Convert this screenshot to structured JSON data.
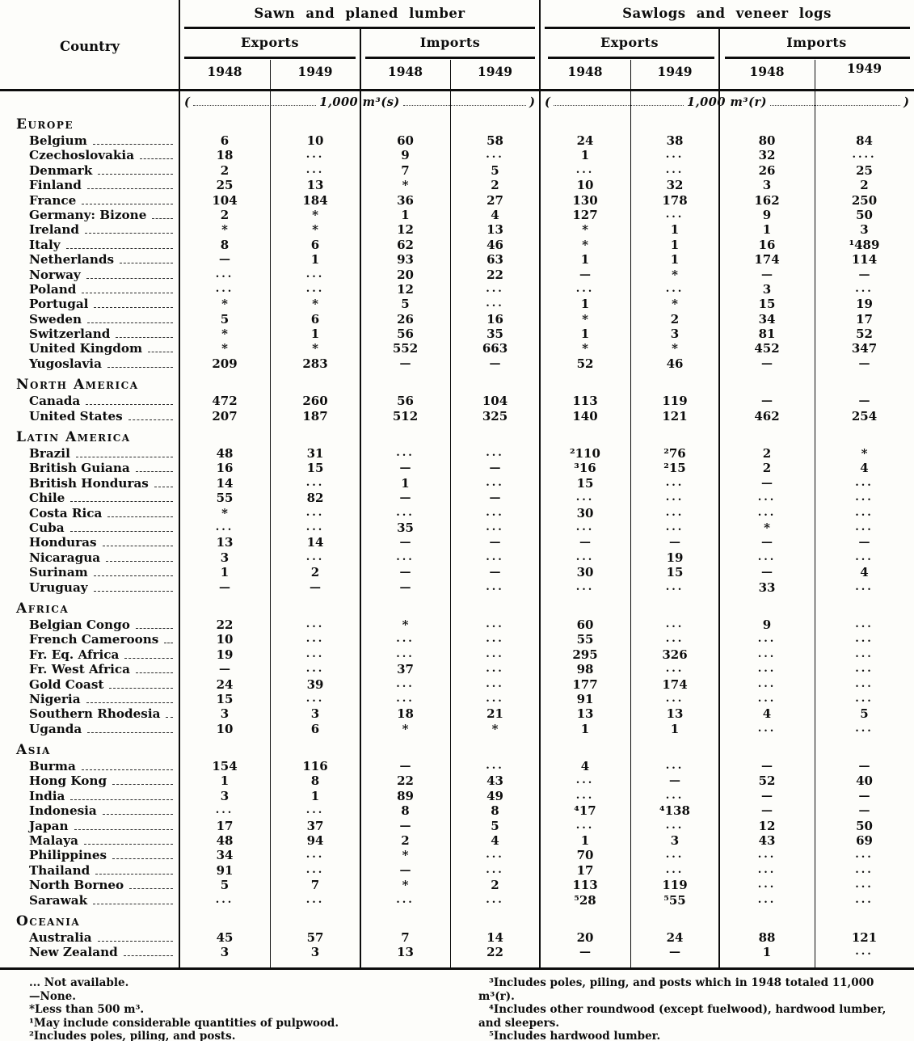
{
  "header": {
    "country_label": "Country",
    "groups": [
      {
        "title": "Sawn and planed lumber",
        "subgroups": [
          "Exports",
          "Imports"
        ],
        "years": [
          "1948",
          "1949",
          "1948",
          "1949"
        ],
        "unit": "1,000 m³(s)"
      },
      {
        "title": "Sawlogs and veneer logs",
        "subgroups": [
          "Exports",
          "Imports"
        ],
        "years": [
          "1948",
          "1949",
          "1948",
          "1949"
        ],
        "unit": "1,000 m³(r)"
      }
    ]
  },
  "sections": [
    {
      "name": "Europe",
      "rows": [
        {
          "country": "Belgium",
          "values": [
            "6",
            "10",
            "60",
            "58",
            "24",
            "38",
            "80",
            "84"
          ]
        },
        {
          "country": "Czechoslovakia",
          "values": [
            "18",
            "...",
            "9",
            "...",
            "1",
            "...",
            "32",
            "...."
          ]
        },
        {
          "country": "Denmark",
          "values": [
            "2",
            "...",
            "7",
            "5",
            "...",
            "...",
            "26",
            "25"
          ]
        },
        {
          "country": "Finland",
          "values": [
            "25",
            "13",
            "*",
            "2",
            "10",
            "32",
            "3",
            "2"
          ]
        },
        {
          "country": "France",
          "values": [
            "104",
            "184",
            "36",
            "27",
            "130",
            "178",
            "162",
            "250"
          ]
        },
        {
          "country": "Germany: Bizone",
          "values": [
            "2",
            "*",
            "1",
            "4",
            "127",
            "...",
            "9",
            "50"
          ]
        },
        {
          "country": "Ireland",
          "values": [
            "*",
            "*",
            "12",
            "13",
            "*",
            "1",
            "1",
            "3"
          ]
        },
        {
          "country": "Italy",
          "values": [
            "8",
            "6",
            "62",
            "46",
            "*",
            "1",
            "16",
            "¹489"
          ]
        },
        {
          "country": "Netherlands",
          "values": [
            "—",
            "1",
            "93",
            "63",
            "1",
            "1",
            "174",
            "114"
          ]
        },
        {
          "country": "Norway",
          "values": [
            "...",
            "...",
            "20",
            "22",
            "—",
            "*",
            "—",
            "—"
          ]
        },
        {
          "country": "Poland",
          "values": [
            "...",
            "...",
            "12",
            "...",
            "...",
            "...",
            "3",
            "..."
          ]
        },
        {
          "country": "Portugal",
          "values": [
            "*",
            "*",
            "5",
            "...",
            "1",
            "*",
            "15",
            "19"
          ]
        },
        {
          "country": "Sweden",
          "values": [
            "5",
            "6",
            "26",
            "16",
            "*",
            "2",
            "34",
            "17"
          ]
        },
        {
          "country": "Switzerland",
          "values": [
            "*",
            "1",
            "56",
            "35",
            "1",
            "3",
            "81",
            "52"
          ]
        },
        {
          "country": "United Kingdom",
          "values": [
            "*",
            "*",
            "552",
            "663",
            "*",
            "*",
            "452",
            "347"
          ]
        },
        {
          "country": "Yugoslavia",
          "values": [
            "209",
            "283",
            "—",
            "—",
            "52",
            "46",
            "—",
            "—"
          ]
        }
      ]
    },
    {
      "name": "North America",
      "rows": [
        {
          "country": "Canada",
          "values": [
            "472",
            "260",
            "56",
            "104",
            "113",
            "119",
            "—",
            "—"
          ]
        },
        {
          "country": "United States",
          "values": [
            "207",
            "187",
            "512",
            "325",
            "140",
            "121",
            "462",
            "254"
          ]
        }
      ]
    },
    {
      "name": "Latin America",
      "rows": [
        {
          "country": "Brazil",
          "values": [
            "48",
            "31",
            "...",
            "...",
            "²110",
            "²76",
            "2",
            "*"
          ]
        },
        {
          "country": "British Guiana",
          "values": [
            "16",
            "15",
            "—",
            "—",
            "³16",
            "²15",
            "2",
            "4"
          ]
        },
        {
          "country": "British Honduras",
          "values": [
            "14",
            "...",
            "1",
            "...",
            "15",
            "...",
            "—",
            "..."
          ]
        },
        {
          "country": "Chile",
          "values": [
            "55",
            "82",
            "—",
            "—",
            "...",
            "...",
            "...",
            "..."
          ]
        },
        {
          "country": "Costa Rica",
          "values": [
            "*",
            "...",
            "...",
            "...",
            "30",
            "...",
            "...",
            "..."
          ]
        },
        {
          "country": "Cuba",
          "values": [
            "...",
            "...",
            "35",
            "...",
            "...",
            "...",
            "*",
            "..."
          ]
        },
        {
          "country": "Honduras",
          "values": [
            "13",
            "14",
            "—",
            "—",
            "—",
            "—",
            "—",
            "—"
          ]
        },
        {
          "country": "Nicaragua",
          "values": [
            "3",
            "...",
            "...",
            "...",
            "...",
            "19",
            "...",
            "..."
          ]
        },
        {
          "country": "Surinam",
          "values": [
            "1",
            "2",
            "—",
            "—",
            "30",
            "15",
            "—",
            "4"
          ]
        },
        {
          "country": "Uruguay",
          "values": [
            "—",
            "—",
            "—",
            "...",
            "...",
            "...",
            "33",
            "..."
          ]
        }
      ]
    },
    {
      "name": "Africa",
      "rows": [
        {
          "country": "Belgian Congo",
          "values": [
            "22",
            "...",
            "*",
            "...",
            "60",
            "...",
            "9",
            "..."
          ]
        },
        {
          "country": "French Cameroons",
          "values": [
            "10",
            "...",
            "...",
            "...",
            "55",
            "...",
            "...",
            "..."
          ]
        },
        {
          "country": "Fr. Eq. Africa",
          "values": [
            "19",
            "...",
            "...",
            "...",
            "295",
            "326",
            "...",
            "..."
          ]
        },
        {
          "country": "Fr. West Africa",
          "values": [
            "—",
            "...",
            "37",
            "...",
            "98",
            "...",
            "...",
            "..."
          ]
        },
        {
          "country": "Gold Coast",
          "values": [
            "24",
            "39",
            "...",
            "...",
            "177",
            "174",
            "...",
            "..."
          ]
        },
        {
          "country": "Nigeria",
          "values": [
            "15",
            "...",
            "...",
            "...",
            "91",
            "...",
            "...",
            "..."
          ]
        },
        {
          "country": "Southern Rhodesia",
          "values": [
            "3",
            "3",
            "18",
            "21",
            "13",
            "13",
            "4",
            "5"
          ]
        },
        {
          "country": "Uganda",
          "values": [
            "10",
            "6",
            "*",
            "*",
            "1",
            "1",
            "...",
            "..."
          ]
        }
      ]
    },
    {
      "name": "Asia",
      "rows": [
        {
          "country": "Burma",
          "values": [
            "154",
            "116",
            "—",
            "...",
            "4",
            "...",
            "—",
            "—"
          ]
        },
        {
          "country": "Hong Kong",
          "values": [
            "1",
            "8",
            "22",
            "43",
            "...",
            "—",
            "52",
            "40"
          ]
        },
        {
          "country": "India",
          "values": [
            "3",
            "1",
            "89",
            "49",
            "...",
            "...",
            "—",
            "—"
          ]
        },
        {
          "country": "Indonesia",
          "values": [
            "...",
            "...",
            "8",
            "8",
            "⁴17",
            "⁴138",
            "—",
            "—"
          ]
        },
        {
          "country": "Japan",
          "values": [
            "17",
            "37",
            "—",
            "5",
            "...",
            "...",
            "12",
            "50"
          ]
        },
        {
          "country": "Malaya",
          "values": [
            "48",
            "94",
            "2",
            "4",
            "1",
            "3",
            "43",
            "69"
          ]
        },
        {
          "country": "Philippines",
          "values": [
            "34",
            "...",
            "*",
            "...",
            "70",
            "...",
            "...",
            "..."
          ]
        },
        {
          "country": "Thailand",
          "values": [
            "91",
            "...",
            "—",
            "...",
            "17",
            "...",
            "...",
            "..."
          ]
        },
        {
          "country": "North Borneo",
          "values": [
            "5",
            "7",
            "*",
            "2",
            "113",
            "119",
            "...",
            "..."
          ]
        },
        {
          "country": "Sarawak",
          "values": [
            "...",
            "...",
            "...",
            "...",
            "⁵28",
            "⁵55",
            "...",
            "..."
          ]
        }
      ]
    },
    {
      "name": "Oceania",
      "rows": [
        {
          "country": "Australia",
          "values": [
            "45",
            "57",
            "7",
            "14",
            "20",
            "24",
            "88",
            "121"
          ]
        },
        {
          "country": "New Zealand",
          "values": [
            "3",
            "3",
            "13",
            "22",
            "—",
            "—",
            "1",
            "..."
          ]
        }
      ]
    }
  ],
  "footnotes": {
    "left": [
      "... Not available.",
      "—None.",
      "*Less than 500 m³.",
      "¹May include considerable quantities of pulpwood.",
      "²Includes poles, piling, and posts."
    ],
    "right": [
      "³Includes poles, piling, and posts which in 1948 totaled 11,000 m³(r).",
      "⁴Includes other roundwood (except fuelwood), hardwood lumber, and sleepers.",
      "⁵Includes hardwood lumber."
    ]
  }
}
